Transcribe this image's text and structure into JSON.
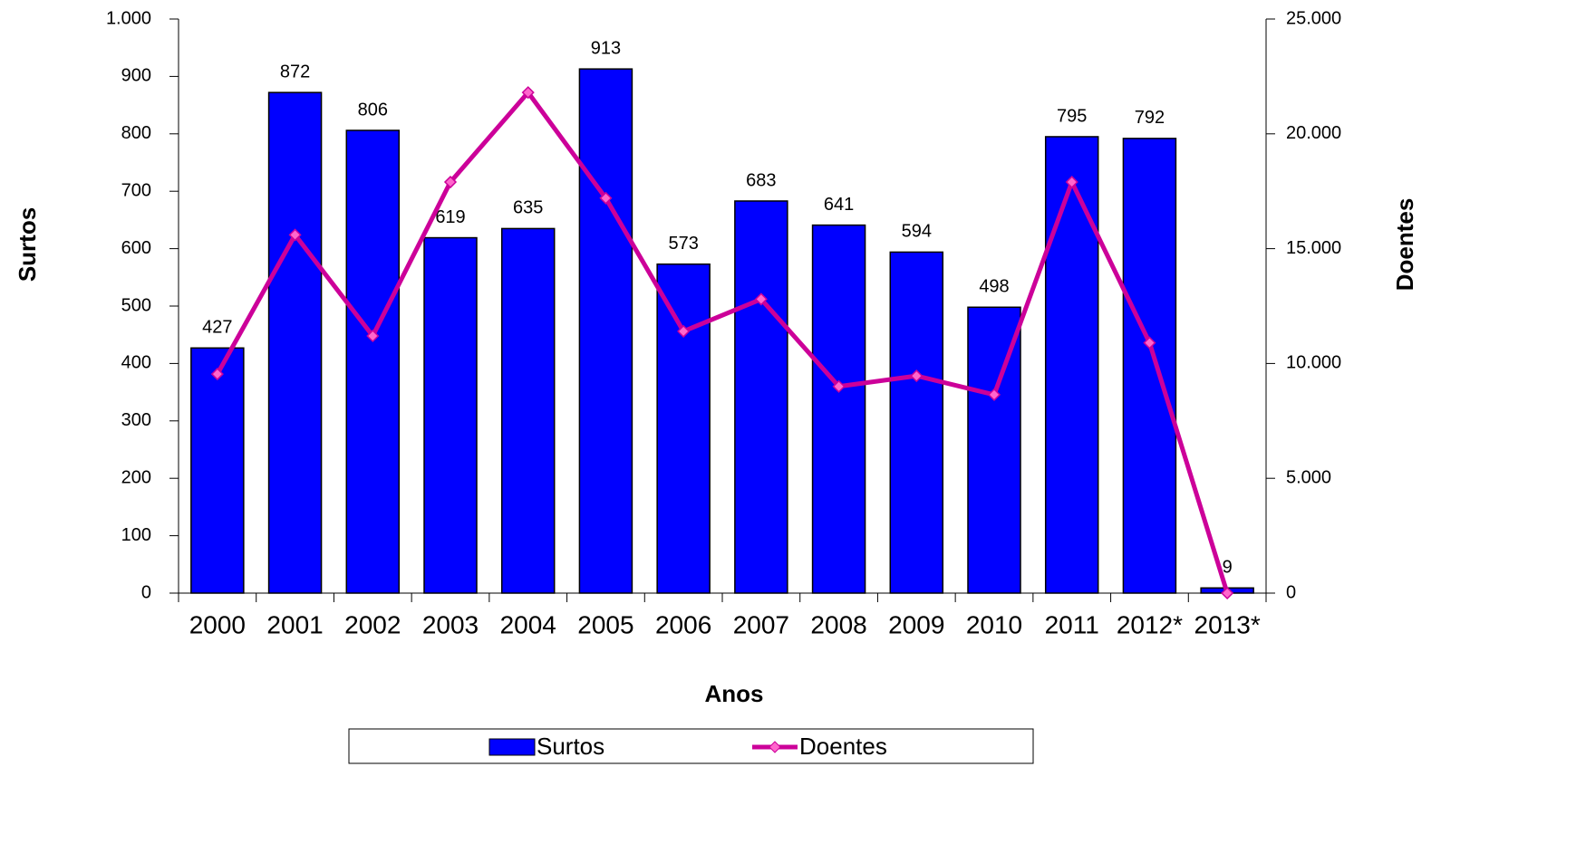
{
  "chart_data": {
    "type": "bar",
    "xlabel": "Anos",
    "ylabel": "Surtos",
    "y2label": "Doentes",
    "categories": [
      "2000",
      "2001",
      "2002",
      "2003",
      "2004",
      "2005",
      "2006",
      "2007",
      "2008",
      "2009",
      "2010",
      "2011",
      "2012*",
      "2013*"
    ],
    "series": [
      {
        "name": "Surtos",
        "color": "#0000ff",
        "values": [
          427,
          872,
          806,
          619,
          635,
          913,
          573,
          683,
          641,
          594,
          498,
          795,
          792,
          9
        ]
      },
      {
        "name": "Doentes",
        "type": "line",
        "color": "#cc0099",
        "axis": "y2",
        "values": [
          9540,
          15600,
          11200,
          17900,
          21800,
          17200,
          11400,
          12800,
          9000,
          9460,
          8640,
          17900,
          10900,
          0
        ]
      }
    ],
    "ylim": [
      0,
      1000
    ],
    "yticks": [
      0,
      100,
      200,
      300,
      400,
      500,
      600,
      700,
      800,
      900,
      {
        "value": 1000,
        "label": "1.000"
      }
    ],
    "y2lim": [
      0,
      25000
    ],
    "y2ticks": [
      0,
      {
        "value": 5000,
        "label": "5.000"
      },
      {
        "value": 10000,
        "label": "10.000"
      },
      {
        "value": 15000,
        "label": "15.000"
      },
      {
        "value": 20000,
        "label": "20.000"
      },
      {
        "value": 25000,
        "label": "25.000"
      }
    ],
    "legend": "bottom",
    "data_labels": true,
    "grid": false
  }
}
